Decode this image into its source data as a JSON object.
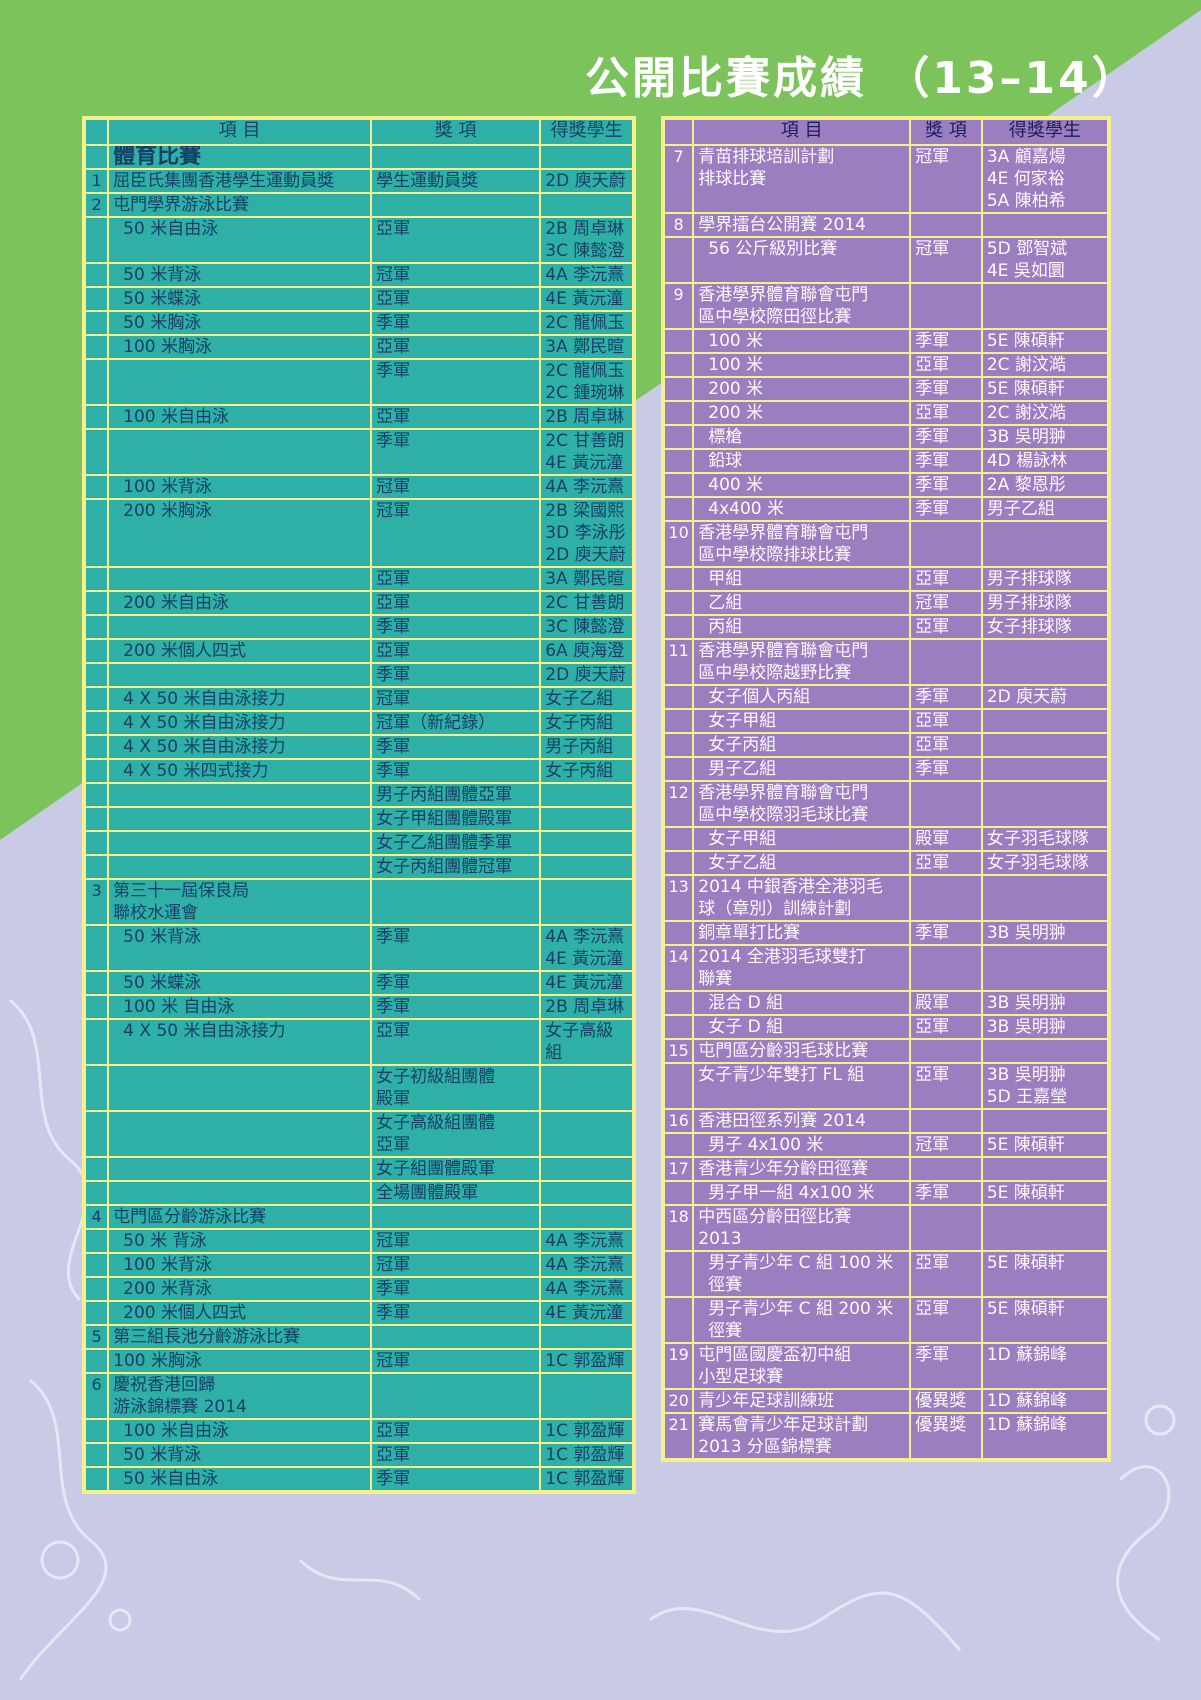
{
  "page": {
    "title": "公開比賽成績 （13–14）",
    "colors": {
      "bg_green": "#7dc35c",
      "bg_lavender": "#c9cbe6",
      "left_table": "#2eb0a6",
      "right_table": "#9b7ec0",
      "border": "#f4f08e"
    }
  },
  "left_table": {
    "headers": [
      "項 目",
      "獎 項",
      "得獎學生"
    ],
    "rows": [
      {
        "type": "cat",
        "num": "",
        "item": "體育比賽",
        "award": "",
        "student": ""
      },
      {
        "type": "main",
        "num": "1",
        "item": "屈臣氏集團香港學生運動員獎",
        "award": "學生運動員獎",
        "student": "2D 庾天蔚"
      },
      {
        "type": "main",
        "num": "2",
        "item": "屯門學界游泳比賽",
        "award": "",
        "student": ""
      },
      {
        "type": "sub",
        "num": "",
        "item": "50 米自由泳",
        "award": "亞軍",
        "student": "2B 周卓琳\n3C 陳懿澄"
      },
      {
        "type": "sub",
        "num": "",
        "item": "50 米背泳",
        "award": "冠軍",
        "student": "4A 李沅熹"
      },
      {
        "type": "sub",
        "num": "",
        "item": "50 米蝶泳",
        "award": "亞軍",
        "student": "4E 黃沅潼"
      },
      {
        "type": "sub",
        "num": "",
        "item": "50 米胸泳",
        "award": "季軍",
        "student": "2C 龍佩玉"
      },
      {
        "type": "sub",
        "num": "",
        "item": "100 米胸泳",
        "award": "亞軍",
        "student": "3A 鄭民暄"
      },
      {
        "type": "sub",
        "num": "",
        "item": "",
        "award": "季軍",
        "student": "2C 龍佩玉\n2C 鍾琬琳"
      },
      {
        "type": "sub",
        "num": "",
        "item": "100 米自由泳",
        "award": "亞軍",
        "student": "2B 周卓琳"
      },
      {
        "type": "sub",
        "num": "",
        "item": "",
        "award": "季軍",
        "student": "2C 甘善朗\n4E 黃沅潼"
      },
      {
        "type": "sub",
        "num": "",
        "item": "100 米背泳",
        "award": "冠軍",
        "student": "4A 李沅熹"
      },
      {
        "type": "sub",
        "num": "",
        "item": "200 米胸泳",
        "award": "冠軍",
        "student": "2B 梁國熙\n3D 李泳彤\n2D 庾天蔚"
      },
      {
        "type": "sub",
        "num": "",
        "item": "",
        "award": "亞軍",
        "student": "3A 鄭民暄"
      },
      {
        "type": "sub",
        "num": "",
        "item": "200 米自由泳",
        "award": "亞軍",
        "student": "2C 甘善朗"
      },
      {
        "type": "sub",
        "num": "",
        "item": "",
        "award": "季軍",
        "student": "3C 陳懿澄"
      },
      {
        "type": "sub",
        "num": "",
        "item": "200 米個人四式",
        "award": "亞軍",
        "student": "6A 庾海澄"
      },
      {
        "type": "sub",
        "num": "",
        "item": "",
        "award": "季軍",
        "student": "2D 庾天蔚"
      },
      {
        "type": "sub",
        "num": "",
        "item": "4 X 50 米自由泳接力",
        "award": "冠軍",
        "student": "女子乙組"
      },
      {
        "type": "sub",
        "num": "",
        "item": "4 X 50 米自由泳接力",
        "award": "冠軍（新紀錄）",
        "student": "女子丙組"
      },
      {
        "type": "sub",
        "num": "",
        "item": "4 X 50 米自由泳接力",
        "award": "季軍",
        "student": "男子丙組"
      },
      {
        "type": "sub",
        "num": "",
        "item": "4 X 50 米四式接力",
        "award": "季軍",
        "student": "女子丙組"
      },
      {
        "type": "sub",
        "num": "",
        "item": "",
        "award": "男子丙組團體亞軍",
        "student": ""
      },
      {
        "type": "sub",
        "num": "",
        "item": "",
        "award": "女子甲組團體殿軍",
        "student": ""
      },
      {
        "type": "sub",
        "num": "",
        "item": "",
        "award": "女子乙組團體季軍",
        "student": ""
      },
      {
        "type": "sub",
        "num": "",
        "item": "",
        "award": "女子丙組團體冠軍",
        "student": ""
      },
      {
        "type": "main",
        "num": "3",
        "item": "第三十一屆保良局\n聯校水運會",
        "award": "",
        "student": ""
      },
      {
        "type": "sub",
        "num": "",
        "item": "50 米背泳",
        "award": "季軍",
        "student": "4A 李沅熹\n4E 黃沅潼"
      },
      {
        "type": "sub",
        "num": "",
        "item": "50 米蝶泳",
        "award": "季軍",
        "student": "4E 黃沅潼"
      },
      {
        "type": "sub",
        "num": "",
        "item": "100 米 自由泳",
        "award": "季軍",
        "student": "2B 周卓琳"
      },
      {
        "type": "sub",
        "num": "",
        "item": "4 X 50 米自由泳接力",
        "award": "亞軍",
        "student": "女子高級\n組"
      },
      {
        "type": "sub",
        "num": "",
        "item": "",
        "award": "女子初級組團體\n殿軍",
        "student": ""
      },
      {
        "type": "sub",
        "num": "",
        "item": "",
        "award": "女子高級組團體\n亞軍",
        "student": ""
      },
      {
        "type": "sub",
        "num": "",
        "item": "",
        "award": "女子組團體殿軍",
        "student": ""
      },
      {
        "type": "sub",
        "num": "",
        "item": "",
        "award": "全場團體殿軍",
        "student": ""
      },
      {
        "type": "main",
        "num": "4",
        "item": "屯門區分齡游泳比賽",
        "award": "",
        "student": ""
      },
      {
        "type": "sub",
        "num": "",
        "item": "50 米 背泳",
        "award": "冠軍",
        "student": "4A 李沅熹"
      },
      {
        "type": "sub",
        "num": "",
        "item": "100 米背泳",
        "award": "冠軍",
        "student": "4A 李沅熹"
      },
      {
        "type": "sub",
        "num": "",
        "item": "200 米背泳",
        "award": "季軍",
        "student": "4A 李沅熹"
      },
      {
        "type": "sub",
        "num": "",
        "item": "200 米個人四式",
        "award": "季軍",
        "student": "4E 黃沅潼"
      },
      {
        "type": "main",
        "num": "5",
        "item": "第三組長池分齡游泳比賽",
        "award": "",
        "student": ""
      },
      {
        "type": "main",
        "num": "",
        "item": "100 米胸泳",
        "award": "冠軍",
        "student": "1C 郭盈輝"
      },
      {
        "type": "main",
        "num": "6",
        "item": "慶祝香港回歸\n游泳錦標賽 2014",
        "award": "",
        "student": ""
      },
      {
        "type": "sub",
        "num": "",
        "item": "100 米自由泳",
        "award": "亞軍",
        "student": "1C 郭盈輝"
      },
      {
        "type": "sub",
        "num": "",
        "item": "50 米背泳",
        "award": "亞軍",
        "student": "1C 郭盈輝"
      },
      {
        "type": "sub",
        "num": "",
        "item": "50 米自由泳",
        "award": "季軍",
        "student": "1C 郭盈輝"
      }
    ]
  },
  "right_table": {
    "headers": [
      "項 目",
      "獎 項",
      "得獎學生"
    ],
    "rows": [
      {
        "type": "main",
        "num": "7",
        "item": "青苗排球培訓計劃\n排球比賽",
        "award": "冠軍",
        "student": "3A 顧嘉煬\n4E 何家裕\n5A 陳柏希"
      },
      {
        "type": "main",
        "num": "8",
        "item": "學界擂台公開賽 2014",
        "award": "",
        "student": ""
      },
      {
        "type": "sub",
        "num": "",
        "item": "56 公斤級別比賽",
        "award": "冠軍",
        "student": "5D 鄧智斌\n4E 吳如圜"
      },
      {
        "type": "main",
        "num": "9",
        "item": "香港學界體育聯會屯門\n區中學校際田徑比賽",
        "award": "",
        "student": ""
      },
      {
        "type": "sub",
        "num": "",
        "item": "100 米",
        "award": "季軍",
        "student": "5E 陳碩軒"
      },
      {
        "type": "sub",
        "num": "",
        "item": "100 米",
        "award": "亞軍",
        "student": "2C 謝汶澔"
      },
      {
        "type": "sub",
        "num": "",
        "item": "200 米",
        "award": "季軍",
        "student": "5E 陳碩軒"
      },
      {
        "type": "sub",
        "num": "",
        "item": "200 米",
        "award": "亞軍",
        "student": "2C 謝汶澔"
      },
      {
        "type": "sub",
        "num": "",
        "item": "標槍",
        "award": "季軍",
        "student": "3B 吳明翀"
      },
      {
        "type": "sub",
        "num": "",
        "item": "鉛球",
        "award": "季軍",
        "student": "4D 楊詠林"
      },
      {
        "type": "sub",
        "num": "",
        "item": "400 米",
        "award": "季軍",
        "student": "2A 黎恩彤"
      },
      {
        "type": "sub",
        "num": "",
        "item": "4x400 米",
        "award": "季軍",
        "student": "男子乙組"
      },
      {
        "type": "main",
        "num": "10",
        "item": "香港學界體育聯會屯門\n區中學校際排球比賽",
        "award": "",
        "student": ""
      },
      {
        "type": "sub",
        "num": "",
        "item": "甲組",
        "award": "亞軍",
        "student": "男子排球隊"
      },
      {
        "type": "sub",
        "num": "",
        "item": "乙組",
        "award": "冠軍",
        "student": "男子排球隊"
      },
      {
        "type": "sub",
        "num": "",
        "item": "丙組",
        "award": "亞軍",
        "student": "女子排球隊"
      },
      {
        "type": "main",
        "num": "11",
        "item": "香港學界體育聯會屯門\n區中學校際越野比賽",
        "award": "",
        "student": ""
      },
      {
        "type": "sub",
        "num": "",
        "item": "女子個人丙組",
        "award": "季軍",
        "student": "2D 庾天蔚"
      },
      {
        "type": "sub",
        "num": "",
        "item": "女子甲組",
        "award": "亞軍",
        "student": ""
      },
      {
        "type": "sub",
        "num": "",
        "item": "女子丙組",
        "award": "亞軍",
        "student": ""
      },
      {
        "type": "sub",
        "num": "",
        "item": "男子乙組",
        "award": "季軍",
        "student": ""
      },
      {
        "type": "main",
        "num": "12",
        "item": "香港學界體育聯會屯門\n區中學校際羽毛球比賽",
        "award": "",
        "student": ""
      },
      {
        "type": "sub",
        "num": "",
        "item": "女子甲組",
        "award": "殿軍",
        "student": "女子羽毛球隊"
      },
      {
        "type": "sub",
        "num": "",
        "item": "女子乙組",
        "award": "亞軍",
        "student": "女子羽毛球隊"
      },
      {
        "type": "main",
        "num": "13",
        "item": "2014 中銀香港全港羽毛\n球（章別）訓練計劃",
        "award": "",
        "student": ""
      },
      {
        "type": "main",
        "num": "",
        "item": "銅章單打比賽",
        "award": "季軍",
        "student": "3B 吳明翀"
      },
      {
        "type": "main",
        "num": "14",
        "item": "2014 全港羽毛球雙打\n聯賽",
        "award": "",
        "student": ""
      },
      {
        "type": "sub",
        "num": "",
        "item": "混合 D 組",
        "award": "殿軍",
        "student": "3B 吳明翀"
      },
      {
        "type": "sub",
        "num": "",
        "item": "女子 D 組",
        "award": "亞軍",
        "student": "3B 吳明翀"
      },
      {
        "type": "main",
        "num": "15",
        "item": "屯門區分齡羽毛球比賽",
        "award": "",
        "student": ""
      },
      {
        "type": "main",
        "num": "",
        "item": "女子青少年雙打 FL 組",
        "award": "亞軍",
        "student": "3B 吳明翀\n5D 王嘉瑩"
      },
      {
        "type": "main",
        "num": "16",
        "item": "香港田徑系列賽 2014",
        "award": "",
        "student": ""
      },
      {
        "type": "sub",
        "num": "",
        "item": "男子 4x100 米",
        "award": "冠軍",
        "student": "5E 陳碩軒"
      },
      {
        "type": "main",
        "num": "17",
        "item": "香港青少年分齡田徑賽",
        "award": "",
        "student": ""
      },
      {
        "type": "sub",
        "num": "",
        "item": "男子甲一組 4x100 米",
        "award": "季軍",
        "student": "5E 陳碩軒"
      },
      {
        "type": "main",
        "num": "18",
        "item": "中西區分齡田徑比賽\n2013",
        "award": "",
        "student": ""
      },
      {
        "type": "sub",
        "num": "",
        "item": "男子青少年 C 組 100 米\n徑賽",
        "award": "亞軍",
        "student": "5E 陳碩軒"
      },
      {
        "type": "sub",
        "num": "",
        "item": "男子青少年 C 組 200 米\n徑賽",
        "award": "亞軍",
        "student": "5E 陳碩軒"
      },
      {
        "type": "main",
        "num": "19",
        "item": "屯門區國慶盃初中組\n小型足球賽",
        "award": "季軍",
        "student": "1D 蘇錦峰"
      },
      {
        "type": "main",
        "num": "20",
        "item": "青少年足球訓練班",
        "award": "優異獎",
        "student": "1D 蘇錦峰"
      },
      {
        "type": "main",
        "num": "21",
        "item": "賽馬會青少年足球計劃\n2013 分區錦標賽",
        "award": "優異獎",
        "student": "1D 蘇錦峰"
      }
    ]
  }
}
